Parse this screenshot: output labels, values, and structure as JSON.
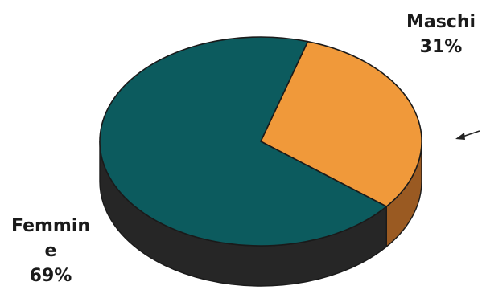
{
  "chart_data": {
    "type": "pie",
    "title": "",
    "slices": [
      {
        "label": "Maschi",
        "label_lines": [
          "Maschi"
        ],
        "value": 31,
        "pct_text": "31%",
        "color": "#F0993A",
        "side_color": "#9A5A22"
      },
      {
        "label": "Femmine",
        "label_lines": [
          "Femmin",
          "e"
        ],
        "value": 69,
        "pct_text": "69%",
        "color": "#0C5B5E",
        "side_color": "#262626"
      }
    ]
  }
}
